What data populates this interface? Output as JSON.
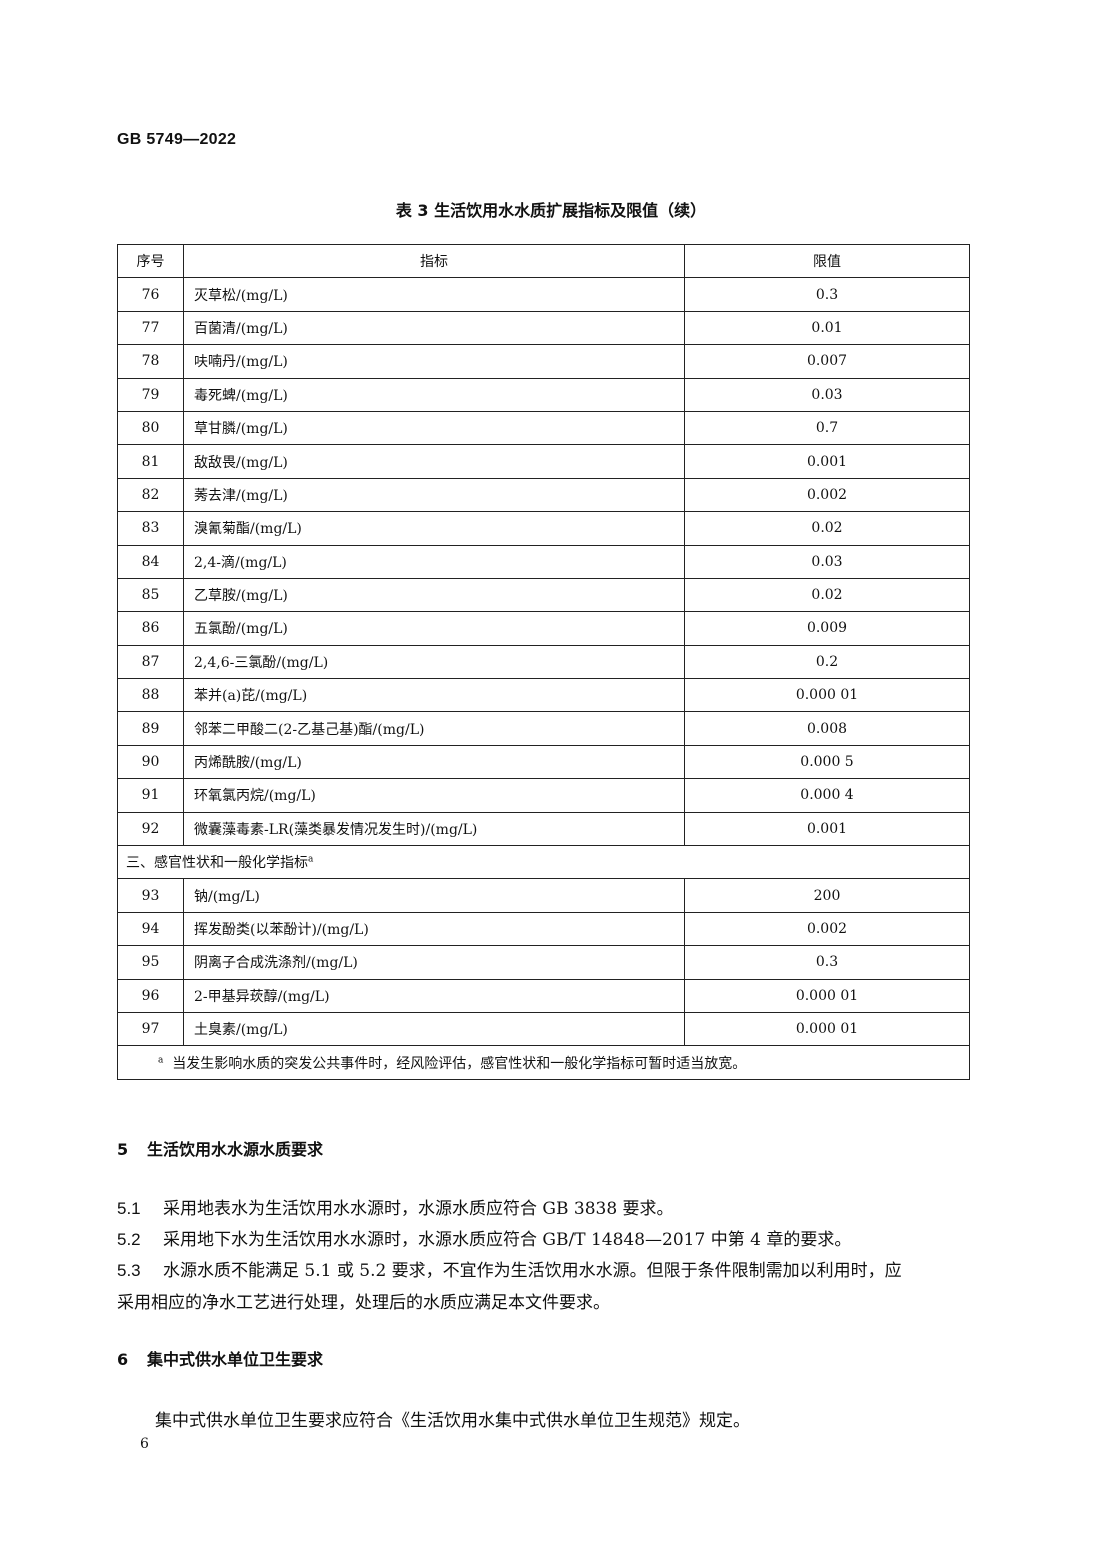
{
  "header": {
    "doc_code": "GB  5749—2022"
  },
  "table": {
    "title": "表 3   生活饮用水水质扩展指标及限值（续）",
    "columns": [
      "序号",
      "指标",
      "限值"
    ],
    "rows_a": [
      {
        "no": "76",
        "name": "灭草松/(mg/L)",
        "limit": "0.3"
      },
      {
        "no": "77",
        "name": "百菌清/(mg/L)",
        "limit": "0.01"
      },
      {
        "no": "78",
        "name": "呋喃丹/(mg/L)",
        "limit": "0.007"
      },
      {
        "no": "79",
        "name": "毒死蜱/(mg/L)",
        "limit": "0.03"
      },
      {
        "no": "80",
        "name": "草甘膦/(mg/L)",
        "limit": "0.7"
      },
      {
        "no": "81",
        "name": "敌敌畏/(mg/L)",
        "limit": "0.001"
      },
      {
        "no": "82",
        "name": "莠去津/(mg/L)",
        "limit": "0.002"
      },
      {
        "no": "83",
        "name": "溴氰菊酯/(mg/L)",
        "limit": "0.02"
      },
      {
        "no": "84",
        "name": "2,4-滴/(mg/L)",
        "limit": "0.03"
      },
      {
        "no": "85",
        "name": "乙草胺/(mg/L)",
        "limit": "0.02"
      },
      {
        "no": "86",
        "name": "五氯酚/(mg/L)",
        "limit": "0.009"
      },
      {
        "no": "87",
        "name": "2,4,6-三氯酚/(mg/L)",
        "limit": "0.2"
      },
      {
        "no": "88",
        "name": "苯并(a)芘/(mg/L)",
        "limit": "0.000 01"
      },
      {
        "no": "89",
        "name": "邻苯二甲酸二(2-乙基己基)酯/(mg/L)",
        "limit": "0.008"
      },
      {
        "no": "90",
        "name": "丙烯酰胺/(mg/L)",
        "limit": "0.000 5"
      },
      {
        "no": "91",
        "name": "环氧氯丙烷/(mg/L)",
        "limit": "0.000 4"
      },
      {
        "no": "92",
        "name": "微囊藻毒素-LR(藻类暴发情况发生时)/(mg/L)",
        "limit": "0.001"
      }
    ],
    "section": {
      "label": "三、感官性状和一般化学指标",
      "mark": "a"
    },
    "rows_b": [
      {
        "no": "93",
        "name": "钠/(mg/L)",
        "limit": "200"
      },
      {
        "no": "94",
        "name": "挥发酚类(以苯酚计)/(mg/L)",
        "limit": "0.002"
      },
      {
        "no": "95",
        "name": "阴离子合成洗涤剂/(mg/L)",
        "limit": "0.3"
      },
      {
        "no": "96",
        "name": "2-甲基异莰醇/(mg/L)",
        "limit": "0.000 01"
      },
      {
        "no": "97",
        "name": "土臭素/(mg/L)",
        "limit": "0.000 01"
      }
    ],
    "footnote": {
      "mark": "a",
      "text": "当发生影响水质的突发公共事件时，经风险评估，感官性状和一般化学指标可暂时适当放宽。"
    }
  },
  "section5": {
    "number": "5",
    "title": "生活饮用水水源水质要求",
    "clauses": [
      {
        "no": "5.1",
        "text": "采用地表水为生活饮用水水源时，水源水质应符合 GB 3838 要求。"
      },
      {
        "no": "5.2",
        "text": "采用地下水为生活饮用水水源时，水源水质应符合 GB/T 14848—2017 中第 4 章的要求。"
      },
      {
        "no": "5.3",
        "text": "水源水质不能满足 5.1 或 5.2 要求，不宜作为生活饮用水水源。但限于条件限制需加以利用时，应",
        "cont": "采用相应的净水工艺进行处理，处理后的水质应满足本文件要求。"
      }
    ]
  },
  "section6": {
    "number": "6",
    "title": "集中式供水单位卫生要求",
    "text": "集中式供水单位卫生要求应符合《生活饮用水集中式供水单位卫生规范》规定。"
  },
  "page_number": "6"
}
